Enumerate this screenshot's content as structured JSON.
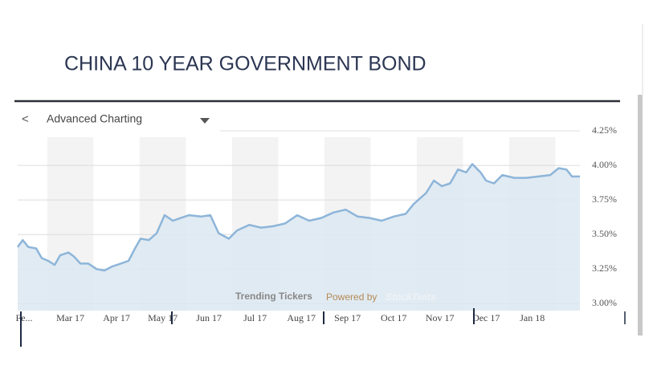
{
  "chart_data": {
    "type": "line",
    "title": "CHINA 10 YEAR GOVERNMENT BOND",
    "toolbar_label": "Advanced Charting",
    "footer": {
      "label": "Trending Tickers",
      "powered": "Powered by",
      "brand": "StockTwits"
    },
    "x": [
      -0.14,
      -0.03,
      0.09,
      0.26,
      0.38,
      0.52,
      0.66,
      0.78,
      0.96,
      1.08,
      1.22,
      1.39,
      1.57,
      1.74,
      1.91,
      2.09,
      2.26,
      2.4,
      2.52,
      2.7,
      2.87,
      3.04,
      3.22,
      3.39,
      3.57,
      3.83,
      4.03,
      4.21,
      4.43,
      4.61,
      4.87,
      5.13,
      5.39,
      5.65,
      5.91,
      6.17,
      6.43,
      6.7,
      6.96,
      7.22,
      7.48,
      7.74,
      8.0,
      8.26,
      8.43,
      8.7,
      8.87,
      9.04,
      9.22,
      9.39,
      9.57,
      9.7,
      9.88,
      10.0,
      10.17,
      10.35,
      10.61,
      10.87,
      11.13,
      11.39,
      11.57,
      11.74,
      11.86,
      12.03
    ],
    "series": [
      {
        "color": "#8db5d9",
        "fill": "#dce8f1",
        "values": [
          3.41,
          3.46,
          3.41,
          3.4,
          3.33,
          3.31,
          3.28,
          3.35,
          3.37,
          3.34,
          3.29,
          3.29,
          3.25,
          3.24,
          3.27,
          3.29,
          3.31,
          3.4,
          3.47,
          3.46,
          3.51,
          3.64,
          3.6,
          3.62,
          3.64,
          3.63,
          3.64,
          3.51,
          3.47,
          3.53,
          3.57,
          3.55,
          3.56,
          3.58,
          3.64,
          3.6,
          3.62,
          3.66,
          3.68,
          3.63,
          3.62,
          3.6,
          3.63,
          3.65,
          3.72,
          3.8,
          3.89,
          3.85,
          3.87,
          3.97,
          3.95,
          4.01,
          3.95,
          3.89,
          3.87,
          3.93,
          3.91,
          3.91,
          3.92,
          3.93,
          3.98,
          3.97,
          3.92,
          3.92
        ]
      }
    ],
    "xlim": [
      -0.14,
      12.03
    ],
    "xticks": [
      {
        "value": 0,
        "label": "Fe..."
      },
      {
        "value": 1,
        "label": "Mar 17"
      },
      {
        "value": 2,
        "label": "Apr 17"
      },
      {
        "value": 3,
        "label": "May 17"
      },
      {
        "value": 4,
        "label": "Jun 17"
      },
      {
        "value": 5,
        "label": "Jul 17"
      },
      {
        "value": 6,
        "label": "Aug 17"
      },
      {
        "value": 7,
        "label": "Sep 17"
      },
      {
        "value": 8,
        "label": "Oct 17"
      },
      {
        "value": 9,
        "label": "Nov 17"
      },
      {
        "value": 10,
        "label": "Dec 17"
      },
      {
        "value": 11,
        "label": "Jan 18"
      }
    ],
    "ylim": [
      2.95,
      4.25
    ],
    "yticks": [
      {
        "value": 3.0,
        "label": "3.00%"
      },
      {
        "value": 3.25,
        "label": "3.25%"
      },
      {
        "value": 3.5,
        "label": "3.50%"
      },
      {
        "value": 3.75,
        "label": "3.75%"
      },
      {
        "value": 4.0,
        "label": "4.00%"
      },
      {
        "value": 4.25,
        "label": "4.25%"
      }
    ],
    "grid": true
  }
}
